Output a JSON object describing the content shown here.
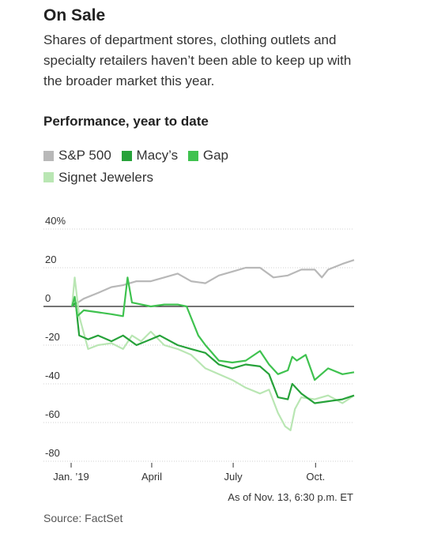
{
  "header": {
    "title": "On Sale",
    "subtitle": "Shares of department stores, clothing outlets and specialty retailers haven’t been able to keep up with the broader market this year.",
    "section_label": "Performance, year to date"
  },
  "legend": [
    {
      "name": "S&P 500",
      "color": "#b8b8b8"
    },
    {
      "name": "Macy’s",
      "color": "#27a23a"
    },
    {
      "name": "Gap",
      "color": "#3fc24f"
    },
    {
      "name": "Signet Jewelers",
      "color": "#b9e6b3"
    }
  ],
  "footnote": "As of Nov. 13, 6:30 p.m. ET",
  "source": "Source: FactSet",
  "chart_data": {
    "type": "line",
    "ylim": [
      -80,
      40
    ],
    "xlim": [
      "2019-01-01",
      "2019-11-13"
    ],
    "y_ticks": [
      {
        "value": 40,
        "label": "40%"
      },
      {
        "value": 20,
        "label": "20"
      },
      {
        "value": 0,
        "label": "0"
      },
      {
        "value": -20,
        "label": "-20"
      },
      {
        "value": -40,
        "label": "-40"
      },
      {
        "value": -60,
        "label": "-60"
      },
      {
        "value": -80,
        "label": "-80"
      }
    ],
    "x_ticks": [
      {
        "date": "2019-01-01",
        "label": "Jan. ’19"
      },
      {
        "date": "2019-04-01",
        "label": "April"
      },
      {
        "date": "2019-07-01",
        "label": "July"
      },
      {
        "date": "2019-10-01",
        "label": "Oct."
      }
    ],
    "grid": true,
    "legend_position": "top",
    "series": [
      {
        "name": "S&P 500",
        "color": "#b8b8b8",
        "points": [
          [
            "2019-01-02",
            0
          ],
          [
            "2019-01-15",
            4
          ],
          [
            "2019-01-31",
            7
          ],
          [
            "2019-02-15",
            10
          ],
          [
            "2019-02-28",
            11
          ],
          [
            "2019-03-15",
            13
          ],
          [
            "2019-03-31",
            13
          ],
          [
            "2019-04-15",
            15
          ],
          [
            "2019-04-30",
            17
          ],
          [
            "2019-05-15",
            13
          ],
          [
            "2019-05-31",
            12
          ],
          [
            "2019-06-15",
            16
          ],
          [
            "2019-06-30",
            18
          ],
          [
            "2019-07-15",
            20
          ],
          [
            "2019-07-31",
            20
          ],
          [
            "2019-08-15",
            15
          ],
          [
            "2019-08-31",
            16
          ],
          [
            "2019-09-15",
            19
          ],
          [
            "2019-09-30",
            19
          ],
          [
            "2019-10-08",
            15
          ],
          [
            "2019-10-15",
            19
          ],
          [
            "2019-10-31",
            22
          ],
          [
            "2019-11-13",
            24
          ]
        ]
      },
      {
        "name": "Gap",
        "color": "#3fc24f",
        "points": [
          [
            "2019-01-02",
            0
          ],
          [
            "2019-01-05",
            5
          ],
          [
            "2019-01-08",
            -5
          ],
          [
            "2019-01-15",
            -2
          ],
          [
            "2019-01-31",
            -3
          ],
          [
            "2019-02-15",
            -4
          ],
          [
            "2019-02-28",
            -5
          ],
          [
            "2019-03-05",
            15
          ],
          [
            "2019-03-10",
            2
          ],
          [
            "2019-03-31",
            0
          ],
          [
            "2019-04-15",
            1
          ],
          [
            "2019-04-30",
            1
          ],
          [
            "2019-05-10",
            0
          ],
          [
            "2019-05-23",
            -15
          ],
          [
            "2019-05-31",
            -20
          ],
          [
            "2019-06-15",
            -28
          ],
          [
            "2019-06-30",
            -29
          ],
          [
            "2019-07-15",
            -28
          ],
          [
            "2019-07-31",
            -23
          ],
          [
            "2019-08-10",
            -30
          ],
          [
            "2019-08-20",
            -35
          ],
          [
            "2019-08-31",
            -33
          ],
          [
            "2019-09-05",
            -26
          ],
          [
            "2019-09-10",
            -28
          ],
          [
            "2019-09-20",
            -25
          ],
          [
            "2019-09-30",
            -38
          ],
          [
            "2019-10-15",
            -32
          ],
          [
            "2019-10-31",
            -35
          ],
          [
            "2019-11-13",
            -34
          ]
        ]
      },
      {
        "name": "Macy’s",
        "color": "#27a23a",
        "points": [
          [
            "2019-01-02",
            0
          ],
          [
            "2019-01-06",
            2
          ],
          [
            "2019-01-10",
            -15
          ],
          [
            "2019-01-20",
            -17
          ],
          [
            "2019-01-31",
            -15
          ],
          [
            "2019-02-15",
            -18
          ],
          [
            "2019-02-28",
            -15
          ],
          [
            "2019-03-15",
            -20
          ],
          [
            "2019-03-31",
            -17
          ],
          [
            "2019-04-10",
            -15
          ],
          [
            "2019-04-30",
            -20
          ],
          [
            "2019-05-15",
            -22
          ],
          [
            "2019-05-31",
            -24
          ],
          [
            "2019-06-15",
            -30
          ],
          [
            "2019-06-30",
            -32
          ],
          [
            "2019-07-15",
            -30
          ],
          [
            "2019-07-31",
            -31
          ],
          [
            "2019-08-10",
            -35
          ],
          [
            "2019-08-20",
            -47
          ],
          [
            "2019-08-31",
            -48
          ],
          [
            "2019-09-05",
            -40
          ],
          [
            "2019-09-15",
            -45
          ],
          [
            "2019-09-30",
            -50
          ],
          [
            "2019-10-15",
            -49
          ],
          [
            "2019-10-31",
            -48
          ],
          [
            "2019-11-13",
            -46
          ]
        ]
      },
      {
        "name": "Signet Jewelers",
        "color": "#b9e6b3",
        "points": [
          [
            "2019-01-02",
            0
          ],
          [
            "2019-01-05",
            15
          ],
          [
            "2019-01-10",
            -5
          ],
          [
            "2019-01-20",
            -22
          ],
          [
            "2019-01-31",
            -20
          ],
          [
            "2019-02-15",
            -19
          ],
          [
            "2019-02-28",
            -22
          ],
          [
            "2019-03-10",
            -15
          ],
          [
            "2019-03-20",
            -18
          ],
          [
            "2019-03-31",
            -13
          ],
          [
            "2019-04-15",
            -20
          ],
          [
            "2019-04-30",
            -22
          ],
          [
            "2019-05-15",
            -25
          ],
          [
            "2019-05-31",
            -32
          ],
          [
            "2019-06-15",
            -35
          ],
          [
            "2019-06-30",
            -38
          ],
          [
            "2019-07-15",
            -42
          ],
          [
            "2019-07-31",
            -45
          ],
          [
            "2019-08-10",
            -43
          ],
          [
            "2019-08-20",
            -55
          ],
          [
            "2019-08-28",
            -62
          ],
          [
            "2019-09-03",
            -64
          ],
          [
            "2019-09-08",
            -53
          ],
          [
            "2019-09-15",
            -47
          ],
          [
            "2019-09-30",
            -48
          ],
          [
            "2019-10-15",
            -46
          ],
          [
            "2019-10-31",
            -50
          ],
          [
            "2019-11-13",
            -46
          ]
        ]
      }
    ]
  }
}
